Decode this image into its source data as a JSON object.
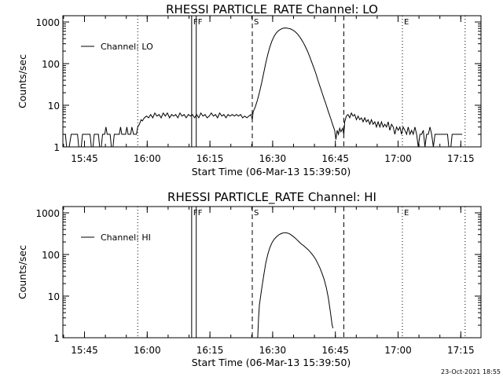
{
  "footer": {
    "timestamp": "23-Oct-2021 18:55"
  },
  "chart_data": [
    {
      "type": "line",
      "title": "RHESSI PARTICLE_RATE Channel: LO",
      "xlabel": "Start Time (06-Mar-13 15:39:50)",
      "ylabel": "Counts/sec",
      "yscale": "log",
      "ylim": [
        1,
        1000
      ],
      "xlim_minutes": [
        0,
        100
      ],
      "xticks": [
        {
          "t": 5.17,
          "label": "15:45"
        },
        {
          "t": 20.17,
          "label": "16:00"
        },
        {
          "t": 35.17,
          "label": "16:15"
        },
        {
          "t": 50.17,
          "label": "16:30"
        },
        {
          "t": 65.17,
          "label": "16:45"
        },
        {
          "t": 80.17,
          "label": "17:00"
        },
        {
          "t": 95.17,
          "label": "17:15"
        }
      ],
      "yticks": [
        {
          "v": 1,
          "label": "1"
        },
        {
          "v": 10,
          "label": "10"
        },
        {
          "v": 100,
          "label": "100"
        },
        {
          "v": 1000,
          "label": "1000"
        }
      ],
      "legend": "Channel: LO",
      "markers": [
        {
          "label": "F",
          "t": 30.8,
          "style": "solid"
        },
        {
          "label": "F",
          "t": 31.9,
          "style": "solid"
        },
        {
          "label": "S",
          "t": 45.3,
          "style": "dashed"
        },
        {
          "label": "",
          "t": 67.2,
          "style": "dashed"
        },
        {
          "label": "E",
          "t": 81.2,
          "style": "dotted"
        },
        {
          "label": "",
          "t": 17.9,
          "style": "dotted"
        },
        {
          "label": "",
          "t": 96.2,
          "style": "dotted"
        }
      ],
      "series": [
        {
          "name": "Channel: LO",
          "points": [
            [
              0.0,
              2
            ],
            [
              0.6,
              2
            ],
            [
              0.9,
              1
            ],
            [
              1.5,
              1
            ],
            [
              2.0,
              2
            ],
            [
              3.5,
              2
            ],
            [
              3.8,
              1
            ],
            [
              4.4,
              1
            ],
            [
              4.7,
              2
            ],
            [
              6.5,
              2
            ],
            [
              6.8,
              1
            ],
            [
              7.2,
              1
            ],
            [
              7.5,
              2
            ],
            [
              8.5,
              2
            ],
            [
              8.8,
              1
            ],
            [
              9.2,
              1
            ],
            [
              9.5,
              2
            ],
            [
              10.0,
              2
            ],
            [
              10.3,
              3
            ],
            [
              10.6,
              2
            ],
            [
              11.3,
              2
            ],
            [
              11.6,
              1
            ],
            [
              12.0,
              1
            ],
            [
              12.3,
              2
            ],
            [
              13.5,
              2
            ],
            [
              13.8,
              3
            ],
            [
              14.1,
              2
            ],
            [
              15.0,
              2
            ],
            [
              15.3,
              3
            ],
            [
              15.6,
              2
            ],
            [
              16.2,
              2
            ],
            [
              16.5,
              3
            ],
            [
              16.9,
              2
            ],
            [
              17.6,
              2
            ],
            [
              17.9,
              3
            ],
            [
              18.3,
              3.5
            ],
            [
              18.7,
              4.5
            ],
            [
              19.0,
              4.2
            ],
            [
              19.5,
              5
            ],
            [
              20.0,
              5.5
            ],
            [
              20.5,
              5
            ],
            [
              21.0,
              6
            ],
            [
              21.5,
              5
            ],
            [
              22.0,
              6.5
            ],
            [
              22.5,
              5.5
            ],
            [
              23.0,
              6
            ],
            [
              23.5,
              5
            ],
            [
              24.0,
              6.5
            ],
            [
              24.5,
              5.5
            ],
            [
              25.0,
              6.5
            ],
            [
              25.5,
              5
            ],
            [
              26.0,
              6
            ],
            [
              26.5,
              5.5
            ],
            [
              27.0,
              6
            ],
            [
              27.5,
              5
            ],
            [
              28.0,
              6.5
            ],
            [
              28.5,
              5.5
            ],
            [
              29.0,
              6
            ],
            [
              29.5,
              5
            ],
            [
              30.0,
              6
            ],
            [
              30.5,
              5.5
            ],
            [
              31.0,
              6
            ],
            [
              31.5,
              5
            ],
            [
              32.0,
              6
            ],
            [
              32.5,
              5
            ],
            [
              33.0,
              6.5
            ],
            [
              33.5,
              5.5
            ],
            [
              34.0,
              6
            ],
            [
              34.5,
              5
            ],
            [
              35.0,
              5.5
            ],
            [
              35.5,
              6.5
            ],
            [
              36.0,
              5.5
            ],
            [
              36.5,
              6
            ],
            [
              37.0,
              5
            ],
            [
              37.5,
              6.5
            ],
            [
              38.0,
              5.5
            ],
            [
              38.5,
              6
            ],
            [
              39.0,
              5
            ],
            [
              39.5,
              6
            ],
            [
              40.0,
              5.5
            ],
            [
              40.5,
              6
            ],
            [
              41.0,
              5.5
            ],
            [
              41.5,
              6
            ],
            [
              42.0,
              5.5
            ],
            [
              42.5,
              6
            ],
            [
              43.0,
              5
            ],
            [
              43.5,
              5.5
            ],
            [
              44.0,
              5
            ],
            [
              44.5,
              5.5
            ],
            [
              45.0,
              6
            ],
            [
              45.3,
              4.5
            ],
            [
              45.5,
              7
            ],
            [
              46.0,
              9
            ],
            [
              46.5,
              13
            ],
            [
              47.0,
              20
            ],
            [
              47.5,
              33
            ],
            [
              48.0,
              58
            ],
            [
              48.5,
              100
            ],
            [
              49.0,
              165
            ],
            [
              49.5,
              250
            ],
            [
              50.0,
              350
            ],
            [
              50.5,
              450
            ],
            [
              51.0,
              540
            ],
            [
              51.5,
              610
            ],
            [
              52.0,
              660
            ],
            [
              52.5,
              700
            ],
            [
              53.0,
              720
            ],
            [
              53.5,
              715
            ],
            [
              54.0,
              700
            ],
            [
              54.5,
              680
            ],
            [
              55.0,
              640
            ],
            [
              55.5,
              590
            ],
            [
              56.0,
              530
            ],
            [
              56.5,
              460
            ],
            [
              57.0,
              390
            ],
            [
              57.5,
              320
            ],
            [
              58.0,
              255
            ],
            [
              58.5,
              200
            ],
            [
              59.0,
              150
            ],
            [
              59.5,
              110
            ],
            [
              60.0,
              80
            ],
            [
              60.5,
              58
            ],
            [
              61.0,
              40
            ],
            [
              61.5,
              28
            ],
            [
              62.0,
              20
            ],
            [
              62.5,
              14
            ],
            [
              63.0,
              10
            ],
            [
              63.5,
              7
            ],
            [
              64.0,
              5
            ],
            [
              64.5,
              3.5
            ],
            [
              65.0,
              2.5
            ],
            [
              65.3,
              1.5
            ],
            [
              65.6,
              2.5
            ],
            [
              65.9,
              2
            ],
            [
              66.2,
              2.8
            ],
            [
              66.5,
              2.3
            ],
            [
              66.9,
              2.8
            ],
            [
              67.2,
              2
            ],
            [
              67.4,
              4
            ],
            [
              67.8,
              5.5
            ],
            [
              68.2,
              6
            ],
            [
              68.6,
              5
            ],
            [
              69.0,
              6.5
            ],
            [
              69.4,
              5.5
            ],
            [
              69.8,
              6
            ],
            [
              70.2,
              4.5
            ],
            [
              70.6,
              5.5
            ],
            [
              71.0,
              4.5
            ],
            [
              71.4,
              5
            ],
            [
              71.8,
              4
            ],
            [
              72.2,
              5
            ],
            [
              72.6,
              4
            ],
            [
              73.0,
              4.5
            ],
            [
              73.4,
              3.5
            ],
            [
              73.8,
              4.5
            ],
            [
              74.2,
              3.5
            ],
            [
              74.6,
              4
            ],
            [
              75.0,
              3
            ],
            [
              75.4,
              4
            ],
            [
              75.8,
              3
            ],
            [
              76.2,
              4
            ],
            [
              76.6,
              3
            ],
            [
              77.0,
              3.5
            ],
            [
              77.4,
              3
            ],
            [
              77.8,
              4
            ],
            [
              78.2,
              2.5
            ],
            [
              78.6,
              3.5
            ],
            [
              79.0,
              3
            ],
            [
              79.4,
              2
            ],
            [
              79.8,
              3
            ],
            [
              80.2,
              2.5
            ],
            [
              80.6,
              3
            ],
            [
              81.0,
              2
            ],
            [
              81.4,
              3
            ],
            [
              81.8,
              2.5
            ],
            [
              82.2,
              2
            ],
            [
              82.6,
              3
            ],
            [
              83.0,
              2
            ],
            [
              83.4,
              2.5
            ],
            [
              83.8,
              2
            ],
            [
              84.2,
              3
            ],
            [
              84.6,
              2
            ],
            [
              85.0,
              1
            ],
            [
              85.4,
              2
            ],
            [
              85.8,
              2
            ],
            [
              86.2,
              2.5
            ],
            [
              86.6,
              1
            ],
            [
              87.0,
              2
            ],
            [
              87.4,
              2
            ],
            [
              87.8,
              3
            ],
            [
              88.2,
              2
            ],
            [
              88.6,
              1
            ],
            [
              89.0,
              2
            ],
            [
              91.5,
              2
            ],
            [
              92.0,
              2
            ],
            [
              92.3,
              1
            ],
            [
              92.8,
              1
            ],
            [
              93.1,
              2
            ],
            [
              95.5,
              2
            ]
          ]
        }
      ]
    },
    {
      "type": "line",
      "title": "RHESSI PARTICLE_RATE Channel: HI",
      "xlabel": "Start Time (06-Mar-13 15:39:50)",
      "ylabel": "Counts/sec",
      "yscale": "log",
      "ylim": [
        1,
        1000
      ],
      "xlim_minutes": [
        0,
        100
      ],
      "xticks": [
        {
          "t": 5.17,
          "label": "15:45"
        },
        {
          "t": 20.17,
          "label": "16:00"
        },
        {
          "t": 35.17,
          "label": "16:15"
        },
        {
          "t": 50.17,
          "label": "16:30"
        },
        {
          "t": 65.17,
          "label": "16:45"
        },
        {
          "t": 80.17,
          "label": "17:00"
        },
        {
          "t": 95.17,
          "label": "17:15"
        }
      ],
      "yticks": [
        {
          "v": 1,
          "label": "1"
        },
        {
          "v": 10,
          "label": "10"
        },
        {
          "v": 100,
          "label": "100"
        },
        {
          "v": 1000,
          "label": "1000"
        }
      ],
      "legend": "Channel: HI",
      "markers": [
        {
          "label": "F",
          "t": 30.8,
          "style": "solid"
        },
        {
          "label": "F",
          "t": 31.9,
          "style": "solid"
        },
        {
          "label": "S",
          "t": 45.3,
          "style": "dashed"
        },
        {
          "label": "",
          "t": 67.2,
          "style": "dashed"
        },
        {
          "label": "E",
          "t": 81.2,
          "style": "dotted"
        },
        {
          "label": "",
          "t": 17.9,
          "style": "dotted"
        },
        {
          "label": "",
          "t": 96.2,
          "style": "dotted"
        }
      ],
      "series": [
        {
          "name": "Channel: HI",
          "points": [
            [
              46.6,
              1
            ],
            [
              46.8,
              3
            ],
            [
              47.0,
              6
            ],
            [
              47.5,
              14
            ],
            [
              48.0,
              30
            ],
            [
              48.5,
              60
            ],
            [
              49.0,
              100
            ],
            [
              49.5,
              145
            ],
            [
              50.0,
              190
            ],
            [
              50.5,
              230
            ],
            [
              51.0,
              260
            ],
            [
              51.5,
              290
            ],
            [
              52.0,
              310
            ],
            [
              52.5,
              325
            ],
            [
              53.0,
              335
            ],
            [
              53.5,
              330
            ],
            [
              54.0,
              320
            ],
            [
              54.5,
              300
            ],
            [
              55.0,
              275
            ],
            [
              55.5,
              250
            ],
            [
              56.0,
              225
            ],
            [
              56.5,
              200
            ],
            [
              57.0,
              180
            ],
            [
              57.5,
              165
            ],
            [
              58.0,
              150
            ],
            [
              58.5,
              135
            ],
            [
              59.0,
              120
            ],
            [
              59.5,
              105
            ],
            [
              60.0,
              90
            ],
            [
              60.5,
              75
            ],
            [
              61.0,
              60
            ],
            [
              61.5,
              47
            ],
            [
              62.0,
              35
            ],
            [
              62.5,
              25
            ],
            [
              63.0,
              16
            ],
            [
              63.5,
              9
            ],
            [
              64.0,
              4
            ],
            [
              64.4,
              2
            ],
            [
              64.6,
              1.7
            ]
          ]
        }
      ]
    }
  ]
}
